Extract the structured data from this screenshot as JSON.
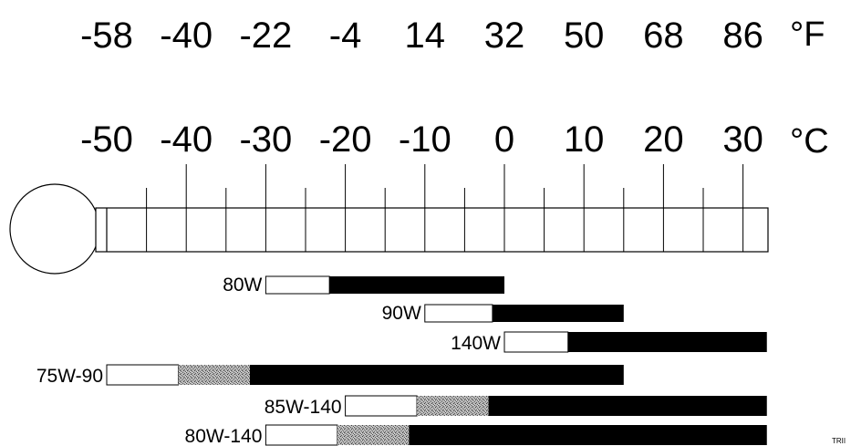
{
  "scale": {
    "fahrenheit_unit": "°F",
    "celsius_unit": "°C",
    "fahrenheit_ticks": [
      "-58",
      "-40",
      "-22",
      "-4",
      "14",
      "32",
      "50",
      "68",
      "86"
    ],
    "celsius_ticks": [
      "-50",
      "-40",
      "-30",
      "-20",
      "-10",
      "0",
      "10",
      "20",
      "30"
    ],
    "celsius_values": [
      -50,
      -40,
      -30,
      -20,
      -10,
      0,
      10,
      20,
      30
    ],
    "range_c": [
      -50,
      33
    ]
  },
  "colors": {
    "solid": "#000000",
    "transitional": "#888888",
    "unsuitable": "#ffffff",
    "outline": "#000000"
  },
  "oils": [
    {
      "label": "80W",
      "min_c": -30,
      "transition_c": -22,
      "max_c": 0
    },
    {
      "label": "90W",
      "min_c": -10,
      "transition_c": -1.5,
      "max_c": 15
    },
    {
      "label": "140W",
      "min_c": 0,
      "transition_c": 8,
      "max_c": 33
    },
    {
      "label": "75W-90",
      "min_c": -50,
      "transition_c": -41,
      "full_c": -32,
      "max_c": 15
    },
    {
      "label": "85W-140",
      "min_c": -20,
      "transition_c": -11,
      "full_c": -2,
      "max_c": 33
    },
    {
      "label": "80W-140",
      "min_c": -30,
      "transition_c": -21,
      "full_c": -12,
      "max_c": 33
    }
  ],
  "corner_mark": "TRII"
}
